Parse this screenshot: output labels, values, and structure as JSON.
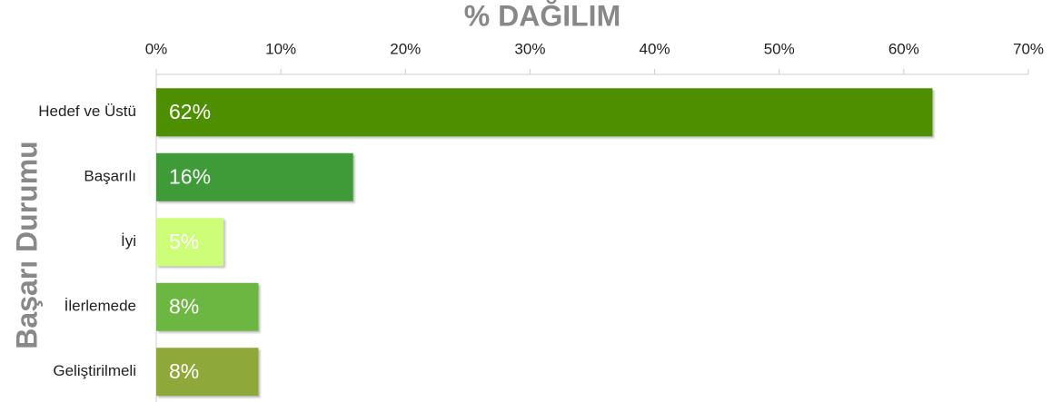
{
  "chart_data": {
    "type": "bar",
    "orientation": "horizontal",
    "title": "% DAĞILIM",
    "y_label": "Başarı Durumu",
    "categories": [
      "Hedef ve Üstü",
      "Başarılı",
      "İyi",
      "İlerlemede",
      "Geliştirilmeli"
    ],
    "values": [
      62.3,
      15.8,
      5.4,
      8.2,
      8.2
    ],
    "value_labels": [
      "62%",
      "16%",
      "5%",
      "8%",
      "8%"
    ],
    "colors": [
      "#4e8f00",
      "#3e9b37",
      "#ccff77",
      "#6bb742",
      "#8fa83a"
    ],
    "xlim": [
      0,
      70
    ],
    "xticks": [
      {
        "value": 0,
        "label": "0%"
      },
      {
        "value": 10,
        "label": "10%"
      },
      {
        "value": 20,
        "label": "20%"
      },
      {
        "value": 30,
        "label": "30%"
      },
      {
        "value": 40,
        "label": "40%"
      },
      {
        "value": 50,
        "label": "50%"
      },
      {
        "value": 60,
        "label": "60%"
      },
      {
        "value": 70,
        "label": "70%"
      }
    ]
  }
}
